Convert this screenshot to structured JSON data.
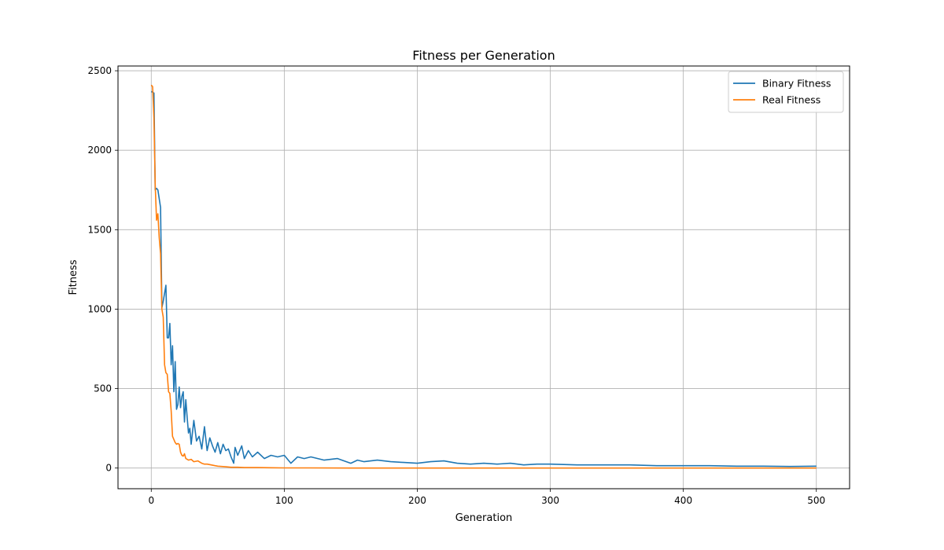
{
  "chart_data": {
    "type": "line",
    "title": "Fitness per Generation",
    "xlabel": "Generation",
    "ylabel": "Fitness",
    "xlim": [
      -25,
      525
    ],
    "ylim": [
      -130,
      2530
    ],
    "xticks": [
      0,
      100,
      200,
      300,
      400,
      500
    ],
    "yticks": [
      0,
      500,
      1000,
      1500,
      2000,
      2500
    ],
    "grid": true,
    "legend_position": "top-right",
    "series": [
      {
        "name": "Binary Fitness",
        "color": "#1f77b4",
        "x": [
          0,
          2,
          3,
          4,
          5,
          7,
          8,
          9,
          10,
          11,
          12,
          13,
          14,
          15,
          16,
          17,
          18,
          19,
          20,
          21,
          22,
          23,
          24,
          25,
          26,
          27,
          28,
          29,
          30,
          32,
          34,
          36,
          38,
          40,
          42,
          44,
          46,
          48,
          50,
          52,
          54,
          56,
          58,
          60,
          62,
          63,
          65,
          68,
          70,
          73,
          76,
          80,
          85,
          90,
          95,
          100,
          105,
          110,
          115,
          120,
          130,
          140,
          150,
          155,
          160,
          170,
          180,
          190,
          200,
          210,
          220,
          230,
          240,
          250,
          260,
          270,
          280,
          290,
          300,
          320,
          340,
          360,
          380,
          400,
          420,
          440,
          460,
          480,
          500
        ],
        "y": [
          2370,
          2360,
          1750,
          1760,
          1750,
          1640,
          1010,
          1050,
          1100,
          1150,
          820,
          820,
          910,
          650,
          770,
          480,
          670,
          370,
          400,
          510,
          380,
          450,
          480,
          290,
          430,
          320,
          220,
          250,
          150,
          300,
          170,
          200,
          120,
          260,
          110,
          190,
          140,
          100,
          160,
          90,
          150,
          110,
          120,
          70,
          30,
          130,
          80,
          140,
          60,
          110,
          70,
          100,
          60,
          80,
          70,
          80,
          30,
          70,
          60,
          70,
          50,
          60,
          30,
          50,
          40,
          50,
          40,
          35,
          30,
          40,
          45,
          30,
          25,
          30,
          25,
          30,
          20,
          25,
          25,
          20,
          20,
          20,
          15,
          15,
          15,
          12,
          12,
          10,
          12
        ]
      },
      {
        "name": "Real Fitness",
        "color": "#ff7f0e",
        "x": [
          0,
          1,
          2,
          3,
          4,
          5,
          6,
          7,
          8,
          9,
          10,
          11,
          12,
          13,
          14,
          15,
          16,
          17,
          18,
          19,
          20,
          21,
          22,
          23,
          24,
          25,
          26,
          27,
          28,
          30,
          32,
          35,
          38,
          40,
          42,
          45,
          48,
          50,
          53,
          56,
          60,
          65,
          70,
          80,
          90,
          100,
          120,
          150,
          200,
          300,
          400,
          500
        ],
        "y": [
          2410,
          2400,
          2200,
          1780,
          1560,
          1600,
          1450,
          1350,
          1000,
          950,
          650,
          600,
          590,
          480,
          470,
          360,
          200,
          180,
          160,
          150,
          155,
          150,
          100,
          80,
          75,
          90,
          60,
          55,
          50,
          55,
          40,
          45,
          30,
          25,
          25,
          20,
          15,
          12,
          10,
          8,
          5,
          5,
          3,
          3,
          2,
          1,
          1,
          0,
          0,
          0,
          0,
          0
        ]
      }
    ]
  }
}
